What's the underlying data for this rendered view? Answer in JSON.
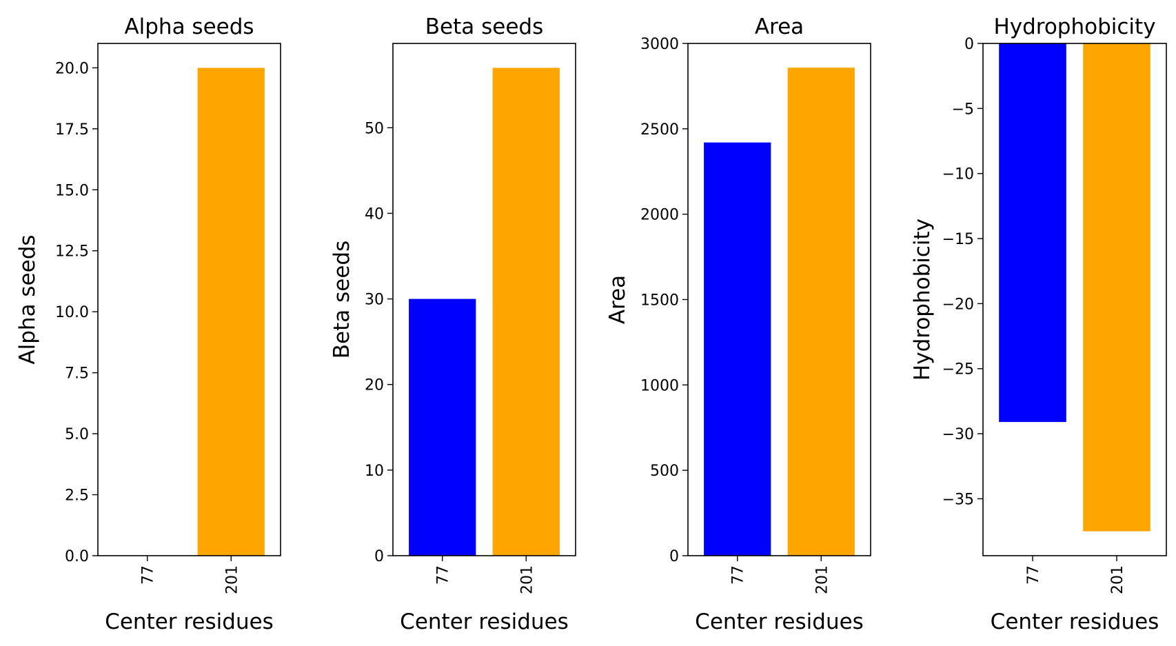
{
  "chart_data": [
    {
      "type": "bar",
      "title": "Alpha seeds",
      "xlabel": "Center residues",
      "ylabel": "Alpha seeds",
      "categories": [
        "77",
        "201"
      ],
      "values": [
        0,
        20
      ],
      "colors": [
        "#0000ff",
        "#ffa500"
      ],
      "ylim": [
        0,
        21
      ],
      "yticks": [
        0,
        2.5,
        5,
        7.5,
        10,
        12.5,
        15,
        17.5,
        20
      ],
      "ytick_labels": [
        "0.0",
        "2.5",
        "5.0",
        "7.5",
        "10.0",
        "12.5",
        "15.0",
        "17.5",
        "20.0"
      ],
      "grid": false
    },
    {
      "type": "bar",
      "title": "Beta seeds",
      "xlabel": "Center residues",
      "ylabel": "Beta seeds",
      "categories": [
        "77",
        "201"
      ],
      "values": [
        30,
        57
      ],
      "colors": [
        "#0000ff",
        "#ffa500"
      ],
      "ylim": [
        0,
        59.85
      ],
      "yticks": [
        0,
        10,
        20,
        30,
        40,
        50
      ],
      "ytick_labels": [
        "0",
        "10",
        "20",
        "30",
        "40",
        "50"
      ],
      "grid": false
    },
    {
      "type": "bar",
      "title": "Area",
      "xlabel": "Center residues",
      "ylabel": "Area",
      "categories": [
        "77",
        "201"
      ],
      "values": [
        2420,
        2858
      ],
      "colors": [
        "#0000ff",
        "#ffa500"
      ],
      "ylim": [
        0,
        3000
      ],
      "yticks": [
        0,
        500,
        1000,
        1500,
        2000,
        2500,
        3000
      ],
      "ytick_labels": [
        "0",
        "500",
        "1000",
        "1500",
        "2000",
        "2500",
        "3000"
      ],
      "grid": false
    },
    {
      "type": "bar",
      "title": "Hydrophobicity",
      "xlabel": "Center residues",
      "ylabel": "Hydrophobicity",
      "categories": [
        "77",
        "201"
      ],
      "values": [
        -29.1,
        -37.5
      ],
      "colors": [
        "#0000ff",
        "#ffa500"
      ],
      "ylim": [
        -39.375,
        0
      ],
      "yticks": [
        0,
        -5,
        -10,
        -15,
        -20,
        -25,
        -30,
        -35
      ],
      "ytick_labels": [
        "0",
        "−5",
        "−10",
        "−15",
        "−20",
        "−25",
        "−30",
        "−35"
      ],
      "grid": false
    }
  ]
}
